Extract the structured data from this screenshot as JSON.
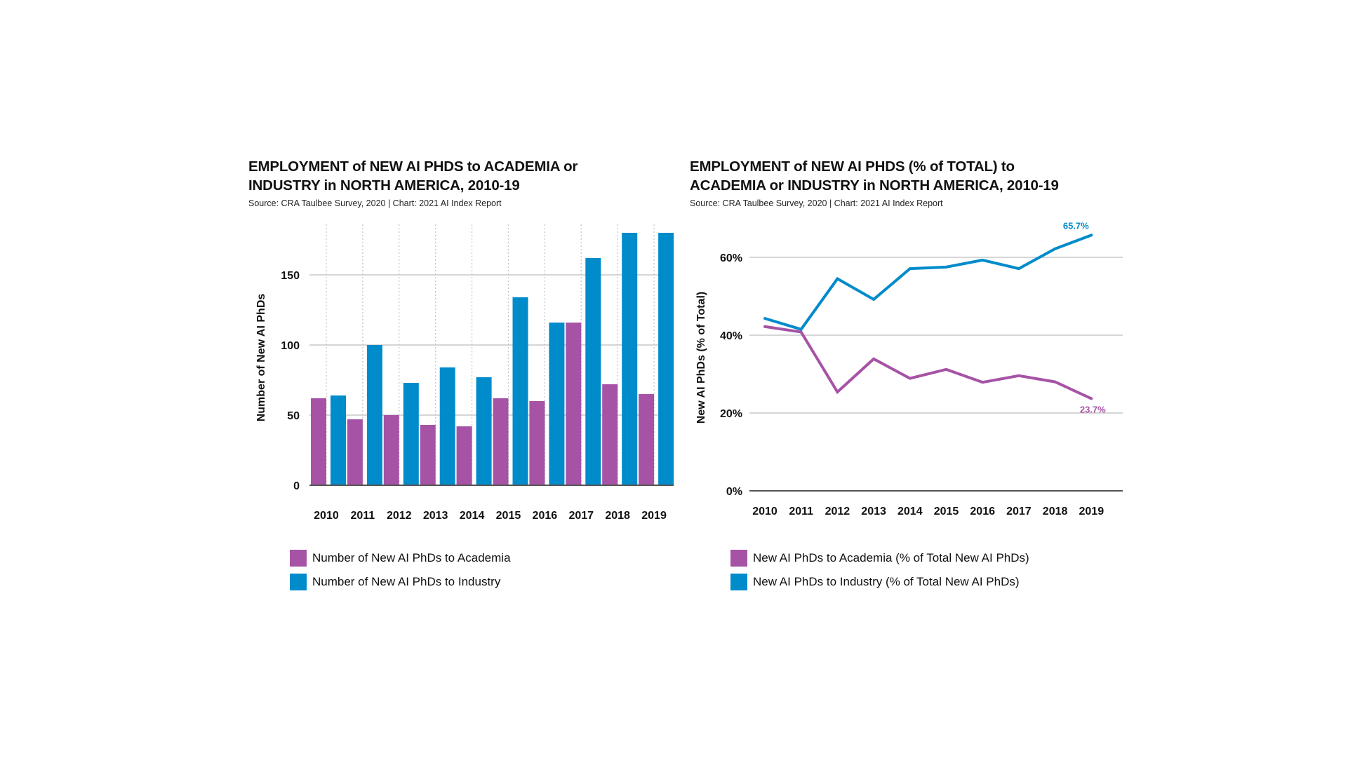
{
  "colors": {
    "academia": "#A653A6",
    "industry": "#008BCB"
  },
  "chart_data": [
    {
      "type": "bar",
      "title": "EMPLOYMENT of NEW AI PHDS to ACADEMIA or INDUSTRY in NORTH AMERICA, 2010-19",
      "title_lines": [
        "EMPLOYMENT of NEW AI PHDS to ACADEMIA or",
        "INDUSTRY in NORTH AMERICA, 2010-19"
      ],
      "source": "Source: CRA Taulbee Survey, 2020 | Chart: 2021 AI Index Report",
      "xlabel": "",
      "ylabel": "Number of New AI PhDs",
      "ylim": [
        0,
        190
      ],
      "yticks": [
        0,
        50,
        100,
        150
      ],
      "ytick_labels": [
        "0",
        "50",
        "100",
        "150"
      ],
      "grid": true,
      "categories": [
        "2010",
        "2011",
        "2012",
        "2013",
        "2014",
        "2015",
        "2016",
        "2017",
        "2018",
        "2019"
      ],
      "series": [
        {
          "name": "Number of New AI PhDs to Academia",
          "color": "#A653A6",
          "values": [
            62,
            47,
            50,
            43,
            42,
            62,
            60,
            116,
            72,
            65
          ]
        },
        {
          "name": "Number of New AI PhDs to Industry",
          "color": "#008BCB",
          "values": [
            64,
            100,
            73,
            84,
            77,
            134,
            116,
            162,
            180,
            180
          ]
        }
      ],
      "legend": "bottom-left"
    },
    {
      "type": "line",
      "title": "EMPLOYMENT of NEW AI PHDS (% of TOTAL) to ACADEMIA or INDUSTRY in NORTH AMERICA, 2010-19",
      "title_lines": [
        "EMPLOYMENT of NEW AI PHDS (% of TOTAL) to",
        "ACADEMIA or INDUSTRY in NORTH AMERICA, 2010-19"
      ],
      "source": "Source: CRA Taulbee Survey, 2020 | Chart: 2021 AI Index Report",
      "xlabel": "",
      "ylabel": "New AI PhDs (% of Total)",
      "ylim": [
        0,
        70
      ],
      "yticks": [
        0,
        20,
        40,
        60
      ],
      "ytick_labels": [
        "0%",
        "20%",
        "40%",
        "60%"
      ],
      "grid": true,
      "categories": [
        "2010",
        "2011",
        "2012",
        "2013",
        "2014",
        "2015",
        "2016",
        "2017",
        "2018",
        "2019"
      ],
      "series": [
        {
          "name": "New AI PhDs to Academia (% of Total New AI PhDs)",
          "color": "#A653A6",
          "values": [
            42.2,
            40.8,
            25.4,
            33.9,
            28.9,
            31.2,
            27.9,
            29.6,
            28.0,
            23.7
          ],
          "end_label": "23.7%"
        },
        {
          "name": "New AI PhDs to Industry (% of Total New AI PhDs)",
          "color": "#008BCB",
          "values": [
            44.3,
            41.5,
            54.5,
            49.2,
            57.1,
            57.5,
            59.3,
            57.1,
            62.2,
            65.7
          ],
          "end_label": "65.7%"
        }
      ],
      "legend": "bottom-left"
    }
  ]
}
